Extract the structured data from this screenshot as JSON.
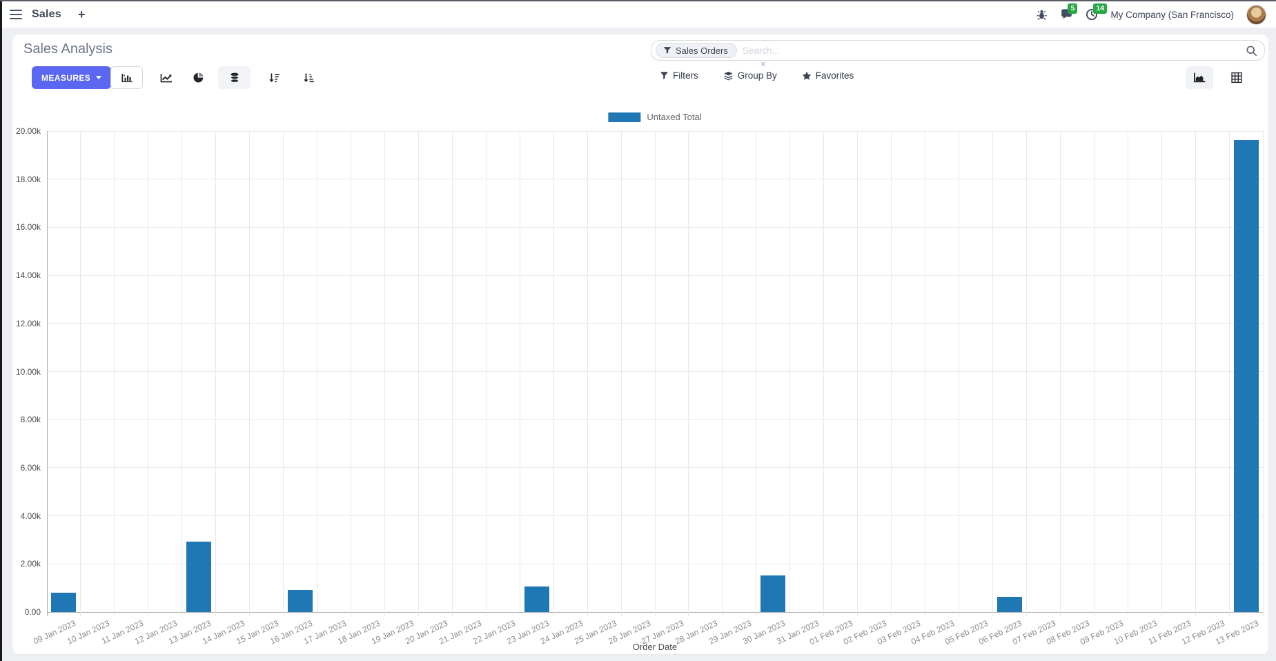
{
  "navbar": {
    "app_name": "Sales",
    "new_tab": "+",
    "chat_badge": "5",
    "activity_badge": "14",
    "company": "My Company (San Francisco)"
  },
  "control_panel": {
    "title": "Sales Analysis",
    "measures_label": "MEASURES",
    "search": {
      "facet": "Sales Orders",
      "facet_remove": "×",
      "placeholder": "Search..."
    },
    "filters_label": "Filters",
    "group_by_label": "Group By",
    "favorites_label": "Favorites"
  },
  "colors": {
    "bar": "#1f77b4",
    "accent": "#5b67f0",
    "badge_green": "#28a745"
  },
  "chart_data": {
    "type": "bar",
    "title": "",
    "xlabel": "Order Date",
    "ylabel": "",
    "ylim": [
      0,
      20000
    ],
    "ytick_step": 2000,
    "ytick_labels": [
      "0.00",
      "2.00k",
      "4.00k",
      "6.00k",
      "8.00k",
      "10.00k",
      "12.00k",
      "14.00k",
      "16.00k",
      "18.00k",
      "20.00k"
    ],
    "grid": true,
    "legend_position": "top",
    "series_label": "Untaxed Total",
    "categories": [
      "09 Jan 2023",
      "10 Jan 2023",
      "11 Jan 2023",
      "12 Jan 2023",
      "13 Jan 2023",
      "14 Jan 2023",
      "15 Jan 2023",
      "16 Jan 2023",
      "17 Jan 2023",
      "18 Jan 2023",
      "19 Jan 2023",
      "20 Jan 2023",
      "21 Jan 2023",
      "22 Jan 2023",
      "23 Jan 2023",
      "24 Jan 2023",
      "25 Jan 2023",
      "26 Jan 2023",
      "27 Jan 2023",
      "28 Jan 2023",
      "29 Jan 2023",
      "30 Jan 2023",
      "31 Jan 2023",
      "01 Feb 2023",
      "02 Feb 2023",
      "03 Feb 2023",
      "04 Feb 2023",
      "05 Feb 2023",
      "06 Feb 2023",
      "07 Feb 2023",
      "08 Feb 2023",
      "09 Feb 2023",
      "10 Feb 2023",
      "11 Feb 2023",
      "12 Feb 2023",
      "13 Feb 2023"
    ],
    "values": [
      800,
      0,
      0,
      0,
      2930,
      0,
      0,
      920,
      0,
      0,
      0,
      0,
      0,
      0,
      1060,
      0,
      0,
      0,
      0,
      0,
      0,
      1520,
      0,
      0,
      0,
      0,
      0,
      0,
      630,
      0,
      0,
      0,
      0,
      0,
      0,
      19630
    ]
  }
}
